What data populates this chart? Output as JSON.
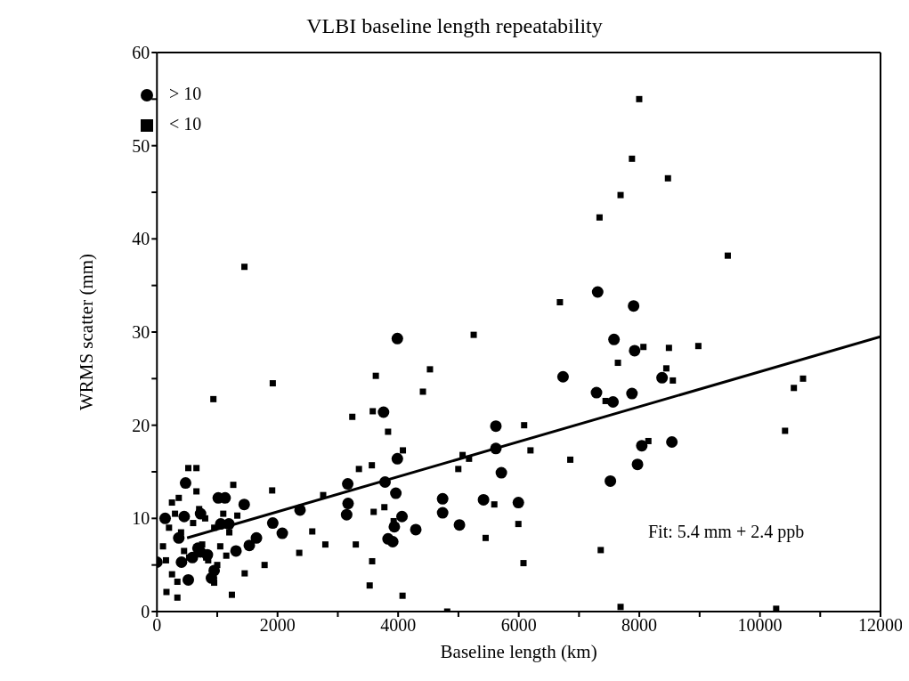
{
  "chart_data": {
    "type": "scatter",
    "title": "VLBI baseline length repeatability",
    "xlabel": "Baseline length (km)",
    "ylabel": "WRMS scatter (mm)",
    "xlim": [
      0,
      12000
    ],
    "ylim": [
      0,
      60
    ],
    "xticks": [
      0,
      {
        "value": 1000,
        "label": null
      },
      2000,
      {
        "value": 3000,
        "label": null
      },
      4000,
      {
        "value": 5000,
        "label": null
      },
      6000,
      {
        "value": 7000,
        "label": null
      },
      8000,
      {
        "value": 9000,
        "label": null
      },
      10000,
      {
        "value": 11000,
        "label": null
      },
      12000
    ],
    "yticks": [
      0,
      {
        "value": 5,
        "label": null
      },
      10,
      {
        "value": 15,
        "label": null
      },
      20,
      {
        "value": 25,
        "label": null
      },
      30,
      {
        "value": 35,
        "label": null
      },
      40,
      {
        "value": 45,
        "label": null
      },
      50,
      {
        "value": 55,
        "label": null
      },
      60
    ],
    "legend": "top left",
    "annotations": [
      "Fit: 5.4 mm + 2.4 ppb"
    ],
    "series": [
      {
        "name": "> 10",
        "marker": "circle",
        "color": "#000000",
        "x": [
          0,
          520,
          475,
          723,
          1017,
          1130,
          1447,
          1058,
          1193,
          1311,
          1532,
          1650,
          1921,
          2079,
          2373,
          3164,
          3170,
          3146,
          680,
          720,
          452,
          136,
          362,
          407,
          836,
          949,
          904,
          588,
          3987,
          3758,
          3987,
          3783,
          3962,
          4064,
          3937,
          3833,
          3911,
          4293,
          4738,
          4738,
          5017,
          5416,
          5621,
          5621,
          5712,
          5994,
          7520,
          6735,
          7309,
          7905,
          7580,
          7922,
          7290,
          7564,
          7878,
          8377,
          8041,
          8540,
          7970
        ],
        "values": [
          5.3,
          3.4,
          13.8,
          10.5,
          12.2,
          12.2,
          11.5,
          9.4,
          9.4,
          6.5,
          7.1,
          7.9,
          9.5,
          8.4,
          10.9,
          13.7,
          11.6,
          10.4,
          6.8,
          6.4,
          10.2,
          10.0,
          7.9,
          5.3,
          6.1,
          4.4,
          3.6,
          5.8,
          29.3,
          21.4,
          16.4,
          13.9,
          12.7,
          10.2,
          9.1,
          7.8,
          7.5,
          8.8,
          12.1,
          10.6,
          9.3,
          12.0,
          19.9,
          17.5,
          14.9,
          11.7,
          14.0,
          25.2,
          34.3,
          32.8,
          29.2,
          28.0,
          23.5,
          22.5,
          23.4,
          25.1,
          17.8,
          18.2,
          15.8
        ]
      },
      {
        "name": "< 10",
        "marker": "square",
        "color": "#000000",
        "x": [
          7998,
          7878,
          8475,
          7689,
          7340,
          9467,
          6683,
          5253,
          4528,
          4411,
          3630,
          3579,
          3240,
          3833,
          4079,
          3350,
          3564,
          5069,
          5176,
          4998,
          6090,
          6195,
          6855,
          7440,
          3772,
          3594,
          5595,
          3298,
          3569,
          3528,
          4073,
          5451,
          5994,
          6079,
          7360,
          3926,
          4814,
          8068,
          8491,
          8979,
          7645,
          8448,
          8556,
          10715,
          10563,
          10417,
          8150,
          7689,
          10270,
          1921,
          936,
          1451,
          520,
          655,
          655,
          1266,
          1911,
          2757,
          2576,
          2793,
          2360,
          1785,
          1455,
          1243,
          949,
          339,
          339,
          158,
          249,
          362,
          1333,
          534,
          817,
          100,
          200,
          300,
          400,
          450,
          600,
          750,
          850,
          950,
          1050,
          1150,
          1000,
          250,
          150,
          700,
          800,
          1200,
          1100
        ],
        "values": [
          55.0,
          48.6,
          46.5,
          44.7,
          42.3,
          38.2,
          33.2,
          29.7,
          26.0,
          23.6,
          25.3,
          21.5,
          20.9,
          19.3,
          17.3,
          15.3,
          15.7,
          16.8,
          16.4,
          15.3,
          20.0,
          17.3,
          16.3,
          22.6,
          11.2,
          10.7,
          11.5,
          7.2,
          5.4,
          2.8,
          1.7,
          7.9,
          9.4,
          5.2,
          6.6,
          9.7,
          0,
          28.4,
          28.3,
          28.5,
          26.7,
          26.1,
          24.8,
          25.0,
          24.0,
          19.4,
          18.3,
          0.5,
          0.3,
          24.5,
          22.8,
          37,
          15.4,
          15.4,
          12.9,
          13.6,
          13.0,
          12.5,
          8.6,
          7.2,
          6.3,
          5.0,
          4.1,
          1.8,
          3.1,
          3.2,
          1.5,
          2.1,
          11.7,
          12.2,
          10.3,
          5.8,
          5.8,
          7,
          9,
          10.5,
          8.5,
          6.5,
          9.5,
          7.2,
          5.5,
          9,
          7,
          6,
          5,
          4,
          5.5,
          11,
          10,
          8.5,
          10.5
        ]
      },
      {
        "type": "line",
        "marker": "none",
        "line_style": "solid",
        "color": "#000000",
        "x": [
          500,
          12000
        ],
        "values": [
          7.9,
          29.5
        ]
      }
    ]
  }
}
